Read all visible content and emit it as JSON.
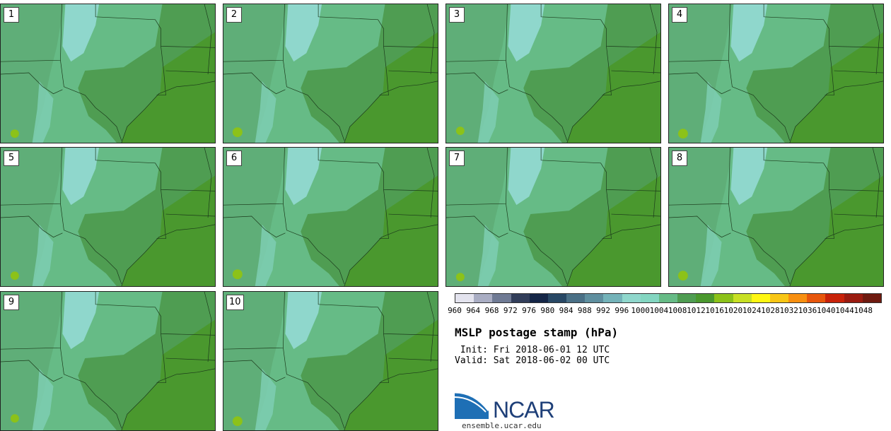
{
  "panels": [
    {
      "label": "1"
    },
    {
      "label": "2"
    },
    {
      "label": "3"
    },
    {
      "label": "4"
    },
    {
      "label": "5"
    },
    {
      "label": "6"
    },
    {
      "label": "7"
    },
    {
      "label": "8"
    },
    {
      "label": "9"
    },
    {
      "label": "10"
    }
  ],
  "colorbar": {
    "ticks": [
      "960",
      "964",
      "968",
      "972",
      "976",
      "980",
      "984",
      "988",
      "992",
      "996",
      "1000",
      "1004",
      "1008",
      "1012",
      "1016",
      "1020",
      "1024",
      "1028",
      "1032",
      "1036",
      "1040",
      "1044",
      "1048"
    ],
    "colors": [
      "#e3e3ee",
      "#a9adc3",
      "#6f7a94",
      "#323e5a",
      "#152647",
      "#284865",
      "#4a7086",
      "#5f8f9f",
      "#74b3b9",
      "#8fd7cc",
      "#83d6c1",
      "#66bb86",
      "#4f9d52",
      "#4a982e",
      "#8cc219",
      "#c8e024",
      "#fff712",
      "#f8c615",
      "#f88f10",
      "#e7560c",
      "#c82209",
      "#9a1b10",
      "#6e1a10"
    ]
  },
  "title": "MSLP postage stamp (hPa)",
  "init": " Init: Fri 2018-06-01 12 UTC",
  "valid": "Valid: Sat 2018-06-02 00 UTC",
  "logo": {
    "text": "NCAR",
    "url": "ensemble.ucar.edu"
  },
  "map_colors": {
    "ocean": "#4a982e",
    "land_low": "#4f9d52",
    "land_mid": "#66bb86",
    "land_high": "#8fd7cc",
    "peak": "#8cc219"
  }
}
